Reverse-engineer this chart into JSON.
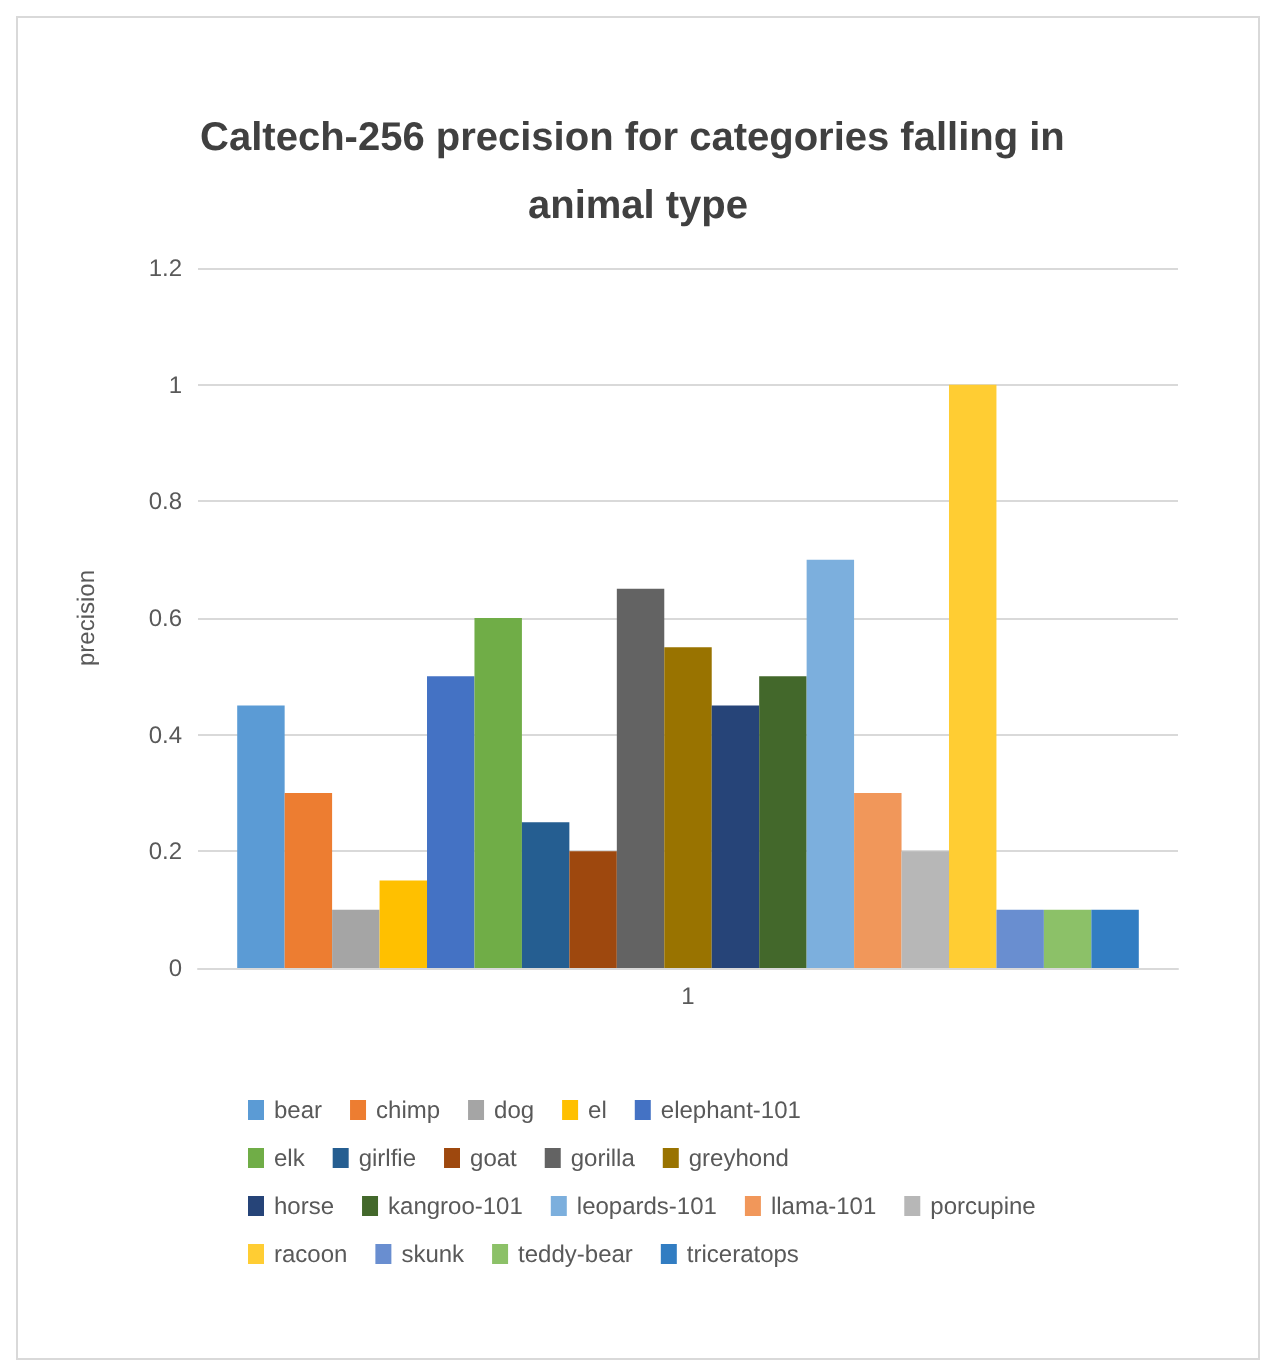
{
  "chart_data": {
    "type": "bar",
    "title": "Caltech-256 precision for categories falling in animal type",
    "ylabel": "precision",
    "categories": [
      "1"
    ],
    "ylim": [
      0,
      1.2
    ],
    "yticks": [
      0,
      0.2,
      0.4,
      0.6,
      0.8,
      1,
      1.2
    ],
    "grid": "y",
    "legend": "bottom",
    "series": [
      {
        "name": "bear",
        "color": "#5b9bd5",
        "values": [
          0.45
        ]
      },
      {
        "name": "chimp",
        "color": "#ed7d31",
        "values": [
          0.3
        ]
      },
      {
        "name": "dog",
        "color": "#a5a5a5",
        "values": [
          0.1
        ]
      },
      {
        "name": "el",
        "color": "#ffc000",
        "values": [
          0.15
        ]
      },
      {
        "name": "elephant-101",
        "color": "#4472c4",
        "values": [
          0.5
        ]
      },
      {
        "name": "elk",
        "color": "#70ad47",
        "values": [
          0.6
        ]
      },
      {
        "name": "girlfie",
        "color": "#255e91",
        "values": [
          0.25
        ]
      },
      {
        "name": "goat",
        "color": "#9e480e",
        "values": [
          0.2
        ]
      },
      {
        "name": "gorilla",
        "color": "#636363",
        "values": [
          0.65
        ]
      },
      {
        "name": "greyhond",
        "color": "#997300",
        "values": [
          0.55
        ]
      },
      {
        "name": "horse",
        "color": "#264478",
        "values": [
          0.45
        ]
      },
      {
        "name": "kangroo-101",
        "color": "#43682b",
        "values": [
          0.5
        ]
      },
      {
        "name": "leopards-101",
        "color": "#7cafdd",
        "values": [
          0.7
        ]
      },
      {
        "name": "llama-101",
        "color": "#f1975a",
        "values": [
          0.3
        ]
      },
      {
        "name": "porcupine",
        "color": "#b7b7b7",
        "values": [
          0.2
        ]
      },
      {
        "name": "racoon",
        "color": "#ffcd33",
        "values": [
          1
        ]
      },
      {
        "name": "skunk",
        "color": "#698ed0",
        "values": [
          0.1
        ]
      },
      {
        "name": "teddy-bear",
        "color": "#8cc168",
        "values": [
          0.1
        ]
      },
      {
        "name": "triceratops",
        "color": "#327dc2",
        "values": [
          0.1
        ]
      }
    ]
  }
}
